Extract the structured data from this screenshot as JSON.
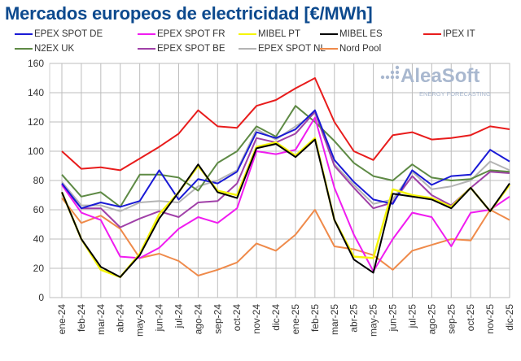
{
  "chart_data": {
    "type": "line",
    "title": "Mercados europeos de electricidad [€/MWh]",
    "xlabel": "",
    "ylabel": "",
    "ylim": [
      0,
      160
    ],
    "yticks": [
      "0",
      "20",
      "40",
      "60",
      "80",
      "100",
      "120",
      "140",
      "160"
    ],
    "grid": true,
    "legend_position": "top",
    "watermark": {
      "brand": "AleaSoft",
      "tagline": "ENERGY FORECASTING"
    },
    "categories": [
      "ene-24",
      "feb-24",
      "mar-24",
      "abr-24",
      "may-24",
      "jun-24",
      "jul-24",
      "ago-24",
      "sep-24",
      "oct-24",
      "nov-24",
      "dic-24",
      "ene-25",
      "feb-25",
      "mar-25",
      "abr-25",
      "may-25",
      "jun-25",
      "jul-25",
      "ago-25",
      "sep-25",
      "oct-25",
      "nov-25",
      "dic-25"
    ],
    "series": [
      {
        "name": "EPEX SPOT DE",
        "color": "#1a1ad6",
        "values": [
          78,
          61,
          65,
          62,
          66,
          87,
          67,
          81,
          78,
          86,
          113,
          109,
          115,
          128,
          94,
          79,
          67,
          64,
          87,
          77,
          83,
          84,
          101,
          93
        ]
      },
      {
        "name": "EPEX SPOT FR",
        "color": "#f01cf0",
        "values": [
          77,
          58,
          53,
          28,
          27,
          34,
          47,
          55,
          51,
          61,
          100,
          98,
          101,
          123,
          75,
          43,
          18,
          40,
          58,
          55,
          35,
          58,
          60,
          69
        ]
      },
      {
        "name": "MIBEL PT",
        "color": "#f5f50a",
        "values": [
          72,
          40,
          19,
          14,
          30,
          57,
          72,
          90,
          73,
          70,
          103,
          106,
          97,
          109,
          53,
          28,
          27,
          74,
          70,
          68,
          62,
          75,
          59,
          77
        ]
      },
      {
        "name": "MIBEL ES",
        "color": "#000000",
        "values": [
          72,
          40,
          21,
          14,
          29,
          54,
          72,
          91,
          72,
          68,
          102,
          105,
          96,
          108,
          53,
          26,
          17,
          71,
          69,
          67,
          61,
          75,
          59,
          78
        ]
      },
      {
        "name": "IPEX IT",
        "color": "#e81c1c",
        "values": [
          100,
          88,
          89,
          87,
          95,
          103,
          112,
          128,
          117,
          116,
          131,
          135,
          143,
          150,
          120,
          100,
          94,
          111,
          113,
          108,
          109,
          111,
          117,
          115
        ]
      },
      {
        "name": "N2EX UK",
        "color": "#5e8a45",
        "values": [
          84,
          69,
          72,
          62,
          84,
          84,
          82,
          73,
          92,
          100,
          117,
          110,
          131,
          120,
          107,
          92,
          83,
          80,
          91,
          82,
          80,
          81,
          87,
          86
        ]
      },
      {
        "name": "EPEX SPOT BE",
        "color": "#a040a8",
        "values": [
          77,
          61,
          61,
          48,
          54,
          59,
          55,
          65,
          66,
          78,
          109,
          106,
          112,
          127,
          90,
          75,
          61,
          65,
          83,
          70,
          63,
          75,
          86,
          85
        ]
      },
      {
        "name": "EPEX SPOT NL",
        "color": "#b4b4b4",
        "values": [
          79,
          63,
          63,
          59,
          65,
          66,
          65,
          76,
          80,
          87,
          115,
          108,
          117,
          126,
          91,
          77,
          64,
          67,
          86,
          74,
          76,
          80,
          93,
          87
        ]
      },
      {
        "name": "Nord Pool",
        "color": "#ef8a4a",
        "values": [
          68,
          51,
          56,
          47,
          27,
          30,
          25,
          15,
          19,
          24,
          37,
          32,
          43,
          60,
          35,
          33,
          29,
          19,
          32,
          36,
          40,
          39,
          60,
          53
        ]
      }
    ]
  }
}
